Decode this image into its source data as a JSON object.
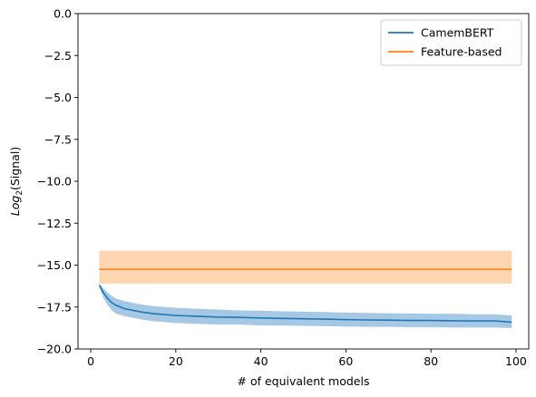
{
  "chart_data": {
    "type": "line",
    "title": "",
    "xlabel": "# of equivalent models",
    "ylabel_main": "Log",
    "ylabel_sub": "2",
    "ylabel_rest": "(Signal)",
    "xlim": [
      -3,
      103
    ],
    "ylim": [
      -20,
      0
    ],
    "xticks": [
      0,
      20,
      40,
      60,
      80,
      100
    ],
    "xtick_labels": [
      "0",
      "20",
      "40",
      "60",
      "80",
      "100"
    ],
    "yticks": [
      0,
      -2.5,
      -5,
      -7.5,
      -10,
      -12.5,
      -15,
      -17.5,
      -20
    ],
    "ytick_labels": [
      "0.0",
      "−2.5",
      "−5.0",
      "−7.5",
      "−10.0",
      "−12.5",
      "−15.0",
      "−17.5",
      "−20.0"
    ],
    "grid": false,
    "legend_position": "top-right",
    "series": [
      {
        "name": "CamemBERT",
        "color": "#1f77b4",
        "band_color": "#a6c8e4",
        "x": [
          2,
          3,
          4,
          5,
          6,
          8,
          10,
          12,
          15,
          20,
          25,
          30,
          35,
          40,
          45,
          50,
          55,
          60,
          65,
          70,
          75,
          80,
          85,
          90,
          95,
          99
        ],
        "y": [
          -16.2,
          -16.65,
          -17.0,
          -17.25,
          -17.4,
          -17.6,
          -17.7,
          -17.8,
          -17.9,
          -18.0,
          -18.05,
          -18.1,
          -18.12,
          -18.15,
          -18.18,
          -18.2,
          -18.22,
          -18.25,
          -18.27,
          -18.28,
          -18.3,
          -18.3,
          -18.32,
          -18.33,
          -18.33,
          -18.4
        ],
        "lower": [
          -16.3,
          -16.95,
          -17.4,
          -17.7,
          -17.9,
          -18.05,
          -18.15,
          -18.25,
          -18.35,
          -18.45,
          -18.5,
          -18.55,
          -18.55,
          -18.6,
          -18.6,
          -18.62,
          -18.64,
          -18.66,
          -18.68,
          -18.68,
          -18.7,
          -18.7,
          -18.72,
          -18.72,
          -18.72,
          -18.75
        ],
        "upper": [
          -16.1,
          -16.4,
          -16.65,
          -16.85,
          -17.0,
          -17.15,
          -17.25,
          -17.35,
          -17.45,
          -17.55,
          -17.6,
          -17.65,
          -17.7,
          -17.72,
          -17.75,
          -17.78,
          -17.8,
          -17.83,
          -17.85,
          -17.87,
          -17.88,
          -17.9,
          -17.9,
          -17.93,
          -17.93,
          -18.0
        ]
      },
      {
        "name": "Feature-based",
        "color": "#ff7f0e",
        "band_color": "#fdd5b0",
        "x": [
          2,
          99
        ],
        "y": [
          -15.25,
          -15.25
        ],
        "lower": [
          -16.1,
          -16.1
        ],
        "upper": [
          -14.15,
          -14.15
        ]
      }
    ]
  }
}
